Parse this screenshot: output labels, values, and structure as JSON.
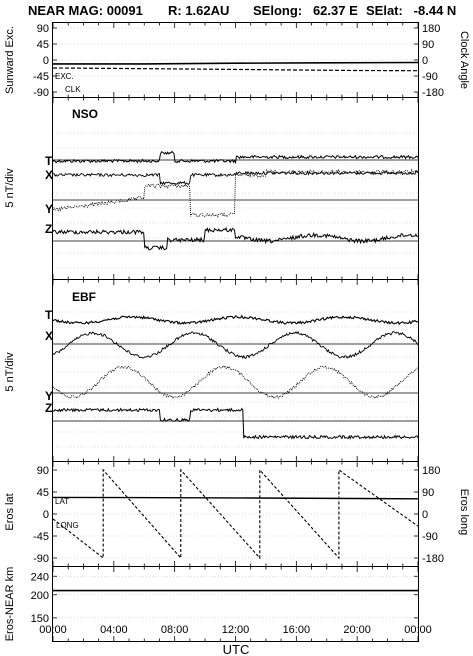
{
  "header": {
    "mission": "NEAR MAG: 00091",
    "distance": "R: 1.62AU",
    "selong": "SElong:   62.37 E",
    "selat": "SElat:   -8.44 N"
  },
  "chart_data": [
    {
      "type": "line",
      "panel": "sunward",
      "ylabel_left": "Sunward Exc.",
      "ylabel_right": "Clock Angle",
      "yticks_left": [
        "90",
        "45",
        "0",
        "-45",
        "-90"
      ],
      "yticks_right": [
        "180",
        "90",
        "0",
        "-90",
        "-180"
      ],
      "ylim": [
        -90,
        90
      ],
      "annotations": [
        "EXC.",
        "CLK"
      ],
      "series": [
        {
          "x": [
            0,
            6,
            12,
            18,
            24
          ],
          "y": [
            -11,
            -11,
            -9,
            -8,
            -7
          ]
        },
        {
          "x": [
            0,
            4,
            8,
            12,
            16,
            20,
            24
          ],
          "y": [
            -45,
            -47,
            -50,
            -53,
            -56,
            -59,
            -60
          ]
        }
      ]
    },
    {
      "type": "line",
      "panel": "NSO",
      "title": "NSO",
      "ylabel": "5 nT/div",
      "components": [
        "T",
        "X",
        "Y",
        "Z"
      ]
    },
    {
      "type": "line",
      "panel": "EBF",
      "title": "EBF",
      "ylabel": "5 nT/div",
      "components": [
        "T",
        "X",
        "Y",
        "Z"
      ]
    },
    {
      "type": "line",
      "panel": "eros-position",
      "ylabel_left": "Eros lat",
      "ylabel_right": "Eros long",
      "yticks_left": [
        "90",
        "45",
        "0",
        "-45",
        "-90"
      ],
      "yticks_right": [
        "180",
        "90",
        "0",
        "-90",
        "-180"
      ],
      "ylim": [
        -90,
        90
      ],
      "annotations": [
        "LAT",
        "LONG"
      ],
      "series": [
        {
          "x": [
            0,
            12,
            24
          ],
          "y": [
            34,
            33,
            31
          ]
        },
        {
          "x": [
            0,
            3.3,
            3.3,
            8.4,
            8.4,
            13.6,
            13.6,
            18.8,
            18.8,
            24
          ],
          "y": [
            -20,
            -180,
            180,
            -180,
            180,
            -180,
            180,
            -180,
            180,
            -50
          ]
        }
      ]
    },
    {
      "type": "line",
      "panel": "eros-near-distance",
      "ylabel": "Eros-NEAR km",
      "yticks": [
        "240",
        "200",
        "150"
      ],
      "ylim": [
        100,
        260
      ],
      "series": [
        {
          "x": [
            0,
            24
          ],
          "y": [
            209,
            209
          ]
        }
      ]
    }
  ],
  "xaxis": {
    "label": "UTC",
    "ticks": [
      "00:00",
      "04:00",
      "08:00",
      "12:00",
      "16:00",
      "20:00",
      "00:00"
    ],
    "range_hours": [
      0,
      24
    ]
  }
}
